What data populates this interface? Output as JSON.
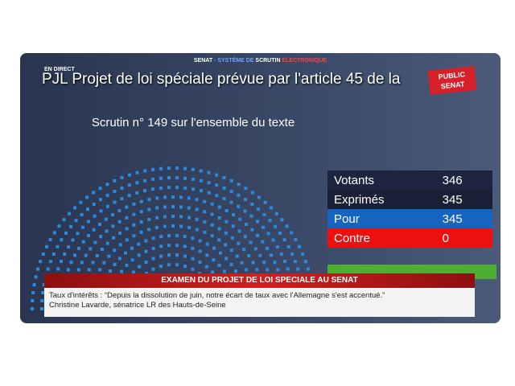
{
  "header": {
    "parts": [
      "SENAT",
      " - SYSTÈME DE ",
      "SCRUTIN",
      " ÉLECTRONIQUE"
    ]
  },
  "live": "EN DIRECT",
  "title": "PJL Projet de loi spéciale prévue par l'article 45 de la",
  "logo": [
    "PUBLIC",
    "SENAT"
  ],
  "subtitle": "Scrutin n° 149 sur l'ensemble du texte",
  "results": {
    "rows": [
      [
        "Votants",
        "346"
      ],
      [
        "Exprimés",
        "345"
      ],
      [
        "Pour",
        "345"
      ],
      [
        "Contre",
        "0"
      ]
    ]
  },
  "banner": "EXAMEN DU PROJET DE LOI SPECIALE AU SENAT",
  "ticker": [
    "Taux d'intérêts : “Depuis la dissolution de juin, notre écart de taux avec l'Allemagne s'est accentué.”",
    "Christine Lavarde, sénatrice LR des Hauts-de-Seine"
  ]
}
